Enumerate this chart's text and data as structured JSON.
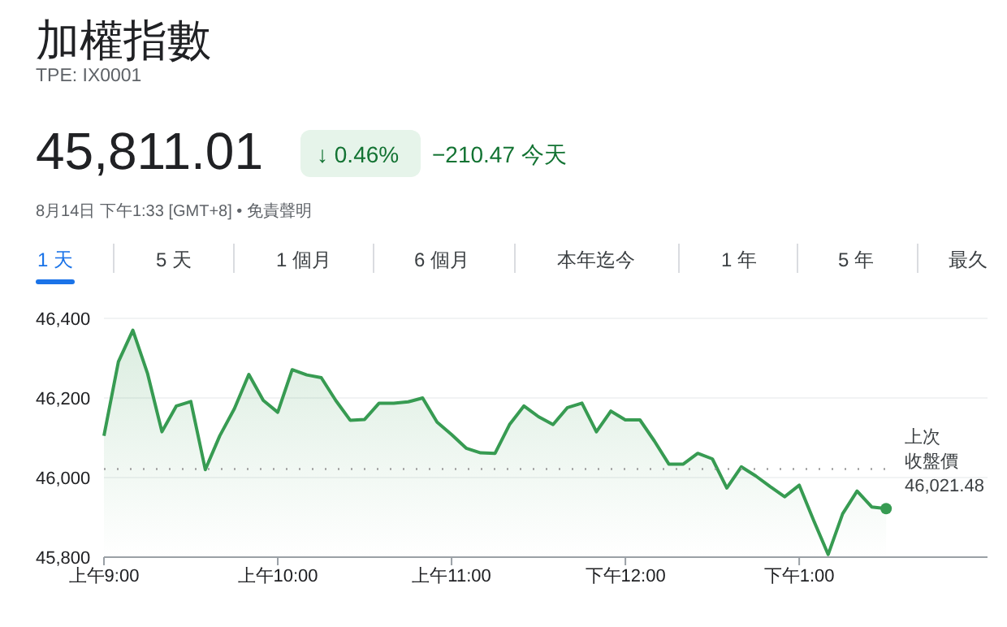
{
  "chart_data": {
    "type": "area",
    "title": "加權指數",
    "subtitle": "TPE: IX0001",
    "annotations": [
      "45,811.01",
      "↓ 0.46%",
      "−210.47 今天",
      "8月14日 下午1:33 [GMT+8] • 免責聲明",
      "1 天",
      "5 天",
      "1 個月",
      "6 個月",
      "本年迄今",
      "1 年",
      "5 年",
      "最久"
    ],
    "categories": [
      "上午9:00",
      null,
      null,
      null,
      null,
      null,
      null,
      null,
      null,
      null,
      null,
      null,
      "上午10:00",
      null,
      null,
      null,
      null,
      null,
      null,
      null,
      null,
      null,
      null,
      null,
      "上午11:00",
      null,
      null,
      null,
      null,
      null,
      null,
      null,
      null,
      null,
      null,
      null,
      "下午12:00",
      null,
      null,
      null,
      null,
      null,
      null,
      null,
      null,
      null,
      null,
      null,
      "下午1:00",
      null,
      null,
      null,
      null,
      null,
      null,
      null,
      null,
      null,
      null,
      null,
      null,
      null
    ],
    "series": [
      {
        "color": "#379b52",
        "values": [
          46105,
          46291,
          46370,
          46262,
          46115,
          46180,
          46191,
          46020,
          46105,
          46173,
          46259,
          46194,
          46164,
          46271,
          46258,
          46251,
          46194,
          46144,
          46146,
          46187,
          46187,
          46190,
          46200,
          46139,
          46108,
          46074,
          46062,
          46061,
          46133,
          46180,
          46153,
          46133,
          46176,
          46187,
          46115,
          46167,
          46145,
          46145,
          46092,
          46034,
          46034,
          46061,
          46047,
          45974,
          46027,
          46004,
          45977,
          45952,
          45981,
          45892,
          45807,
          45909,
          45966,
          45926,
          45922,
          null,
          null,
          null,
          null,
          null,
          null,
          null
        ]
      }
    ],
    "ylim": [
      45800,
      46400
    ],
    "yticks": [
      {
        "value": 45800,
        "label": "45,800"
      },
      {
        "value": 46000,
        "label": "46,000"
      },
      {
        "value": 46200,
        "label": "46,200"
      },
      {
        "value": 46400,
        "label": "46,400"
      }
    ],
    "grid": "y",
    "marker": "none",
    "line_style": "solid",
    "ref_lines": [
      {
        "axis": "y",
        "value": 46021.48,
        "label": "上次收盤價 46,021.48",
        "color": "#9e9e9e",
        "line_style": "dotted"
      }
    ]
  }
}
